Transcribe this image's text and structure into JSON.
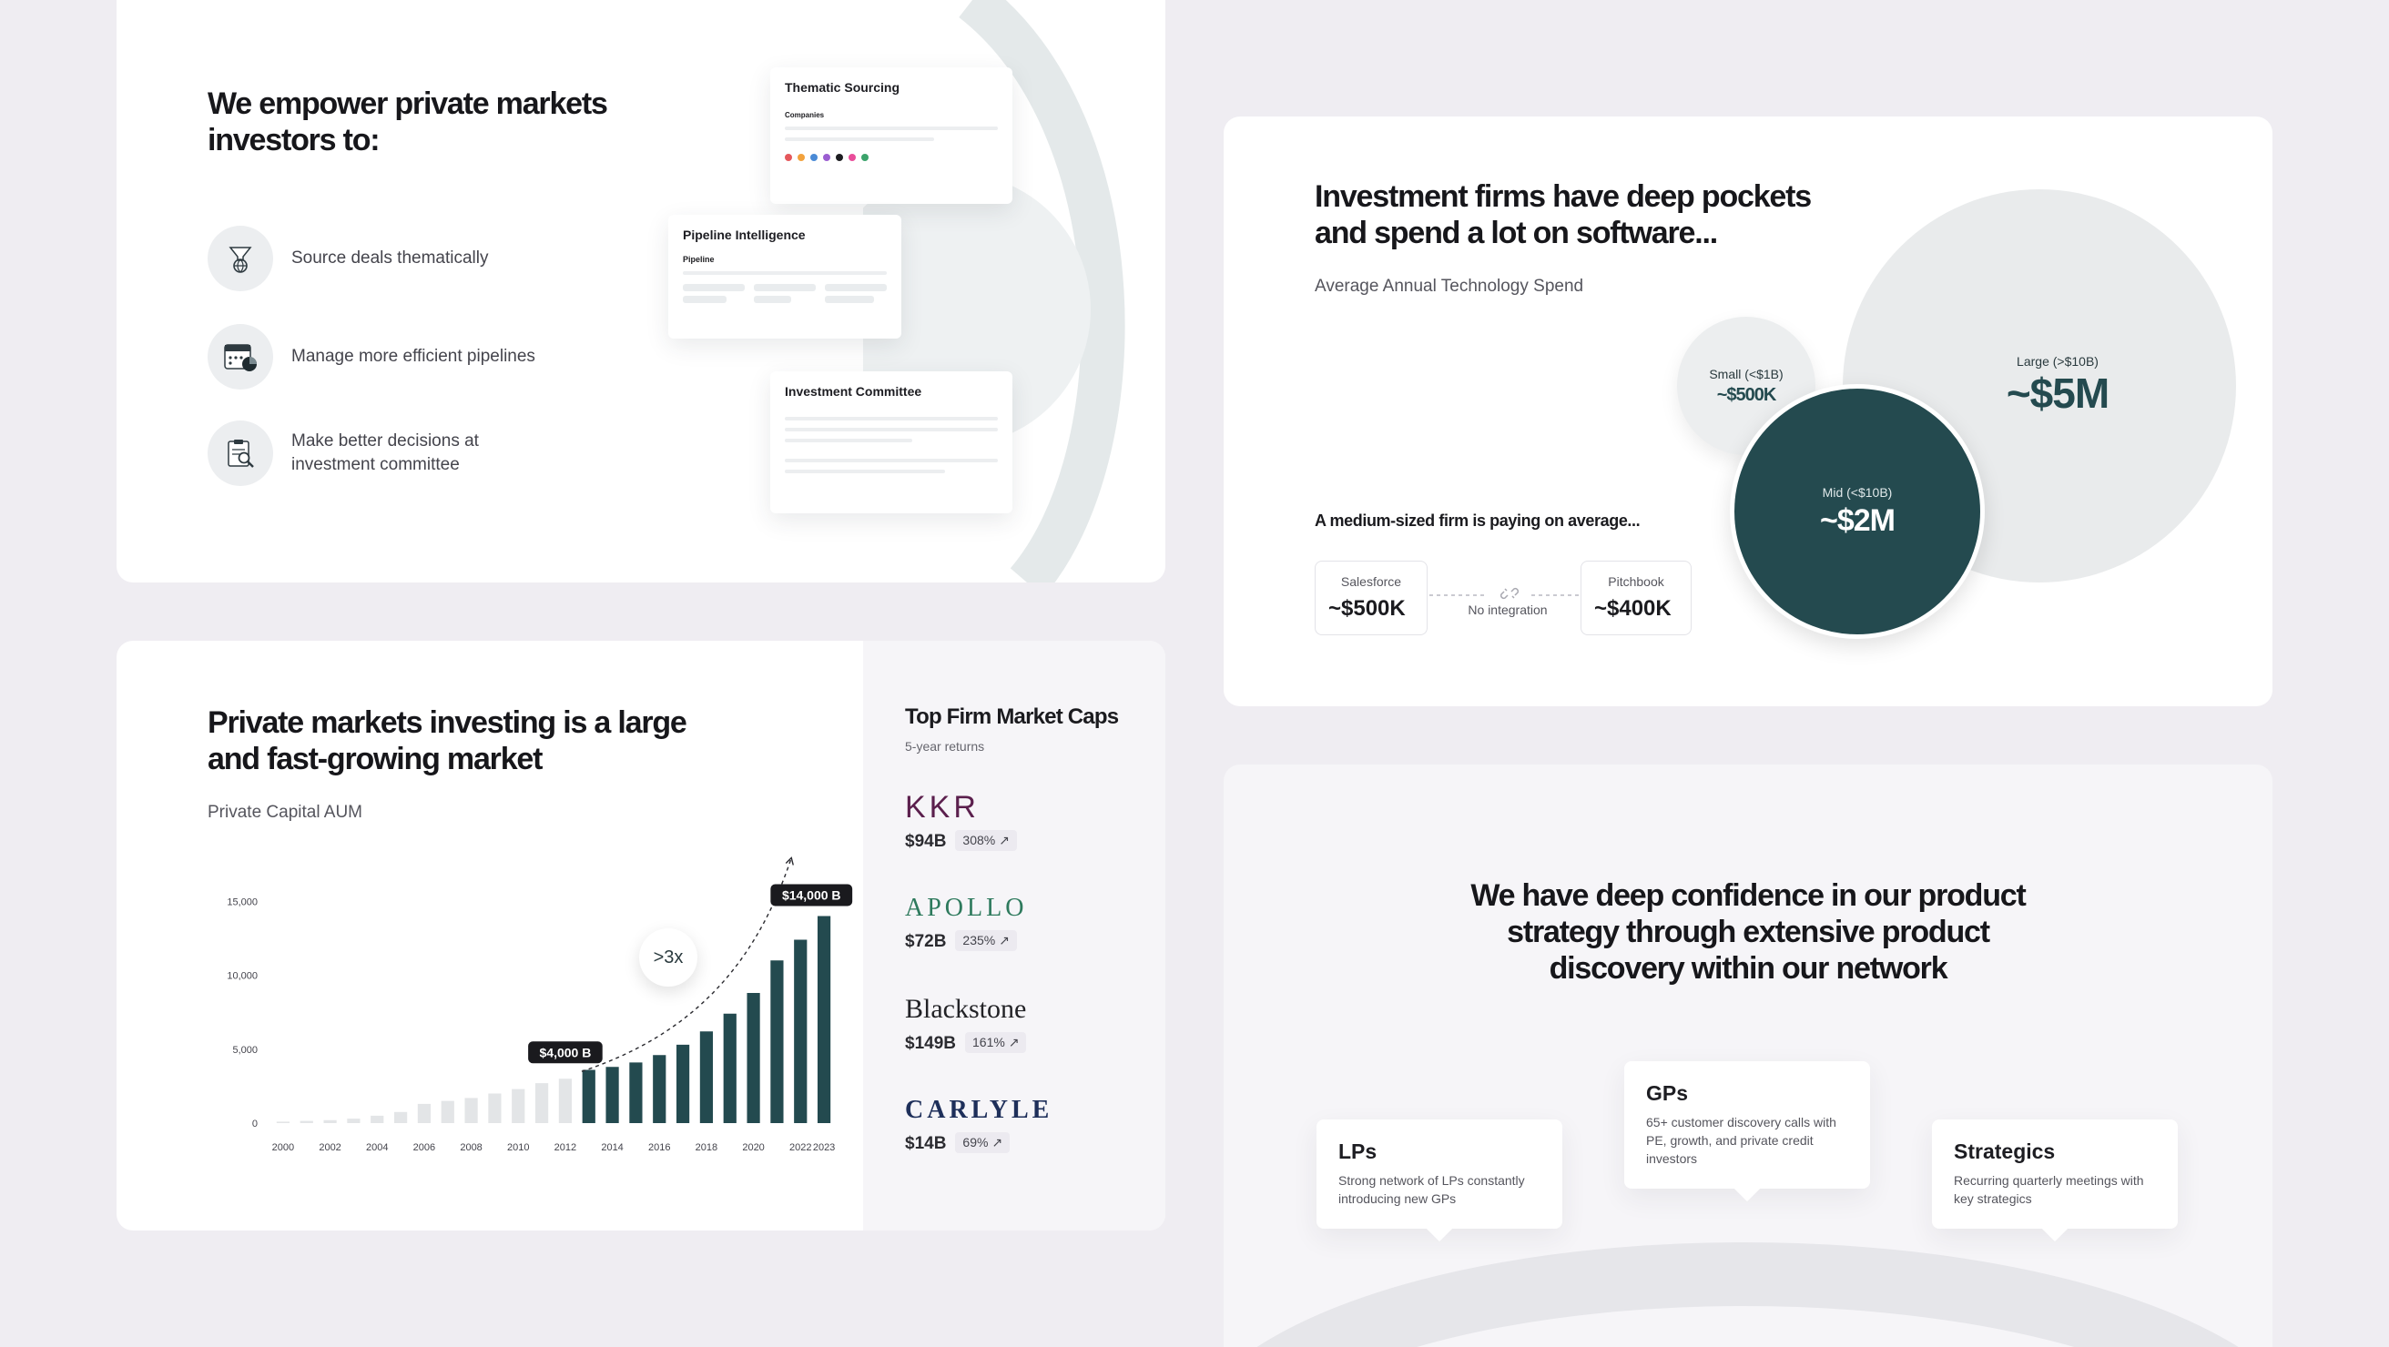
{
  "empower": {
    "title_line1": "We empower private markets",
    "title_line2": "investors to:",
    "features": [
      {
        "icon": "globe-filter-icon",
        "text": "Source deals thematically"
      },
      {
        "icon": "calendar-pie-icon",
        "text": "Manage more efficient pipelines"
      },
      {
        "icon": "clipboard-search-icon",
        "text_line1": "Make better decisions at",
        "text_line2": "investment committee"
      }
    ],
    "screens": {
      "thematic": {
        "title": "Thematic Sourcing",
        "subtitle": "Companies"
      },
      "pipeline": {
        "title": "Pipeline Intelligence",
        "subtitle": "Pipeline"
      },
      "committee": {
        "title": "Investment Committee"
      }
    }
  },
  "spend": {
    "title_line1": "Investment firms have deep pockets",
    "title_line2": "and spend a lot on software...",
    "subtitle": "Average Annual Technology Spend",
    "bubbles": [
      {
        "label": "Small (<$1B)",
        "value": "~$500K",
        "color": "#eceeef"
      },
      {
        "label": "Large (>$10B)",
        "value": "~$5M",
        "color": "#e9ebec"
      },
      {
        "label": "Mid (<$10B)",
        "value": "~$2M",
        "color": "#244a4f"
      }
    ],
    "medium_text": "A medium-sized firm is paying on average...",
    "tools": [
      {
        "label": "Salesforce",
        "value": "~$500K"
      },
      {
        "label": "Pitchbook",
        "value": "~$400K"
      }
    ],
    "connector_label": "No integration"
  },
  "market": {
    "title_line1": "Private markets investing is a large",
    "title_line2": "and fast-growing market",
    "subtitle": "Private Capital AUM",
    "multiplier": ">3x",
    "callout_start": "$4,000 B",
    "callout_end": "$14,000 B"
  },
  "chart_data": {
    "type": "bar",
    "title": "Private Capital AUM",
    "x": [
      2000,
      2001,
      2002,
      2003,
      2004,
      2005,
      2006,
      2007,
      2008,
      2009,
      2010,
      2011,
      2012,
      2013,
      2014,
      2015,
      2016,
      2017,
      2018,
      2019,
      2020,
      2021,
      2022,
      2023
    ],
    "values": [
      100,
      150,
      200,
      300,
      500,
      750,
      1300,
      1500,
      1700,
      2000,
      2300,
      2700,
      3000,
      3600,
      3800,
      4100,
      4600,
      5300,
      6200,
      7400,
      8800,
      11000,
      12400,
      14000
    ],
    "highlight_from": 2013,
    "ylim": [
      0,
      16000
    ],
    "yticks": [
      0,
      5000,
      10000,
      15000
    ],
    "ytick_labels": [
      "0",
      "5,000",
      "10,000",
      "15,000"
    ],
    "xtick_labels": [
      "2000",
      "2002",
      "2004",
      "2006",
      "2008",
      "2010",
      "2012",
      "2014",
      "2016",
      "2018",
      "2020",
      "2022",
      "2023"
    ],
    "colors": {
      "base": "#e3e5e7",
      "highlight": "#234a4f"
    }
  },
  "firms": {
    "title": "Top Firm Market Caps",
    "subtitle": "5-year returns",
    "list": [
      {
        "name": "KKR",
        "cap": "$94B",
        "ret": "308%",
        "color": "#5b1f4d"
      },
      {
        "name": "APOLLO",
        "cap": "$72B",
        "ret": "235%",
        "color": "#2e7a5d"
      },
      {
        "name": "Blackstone",
        "cap": "$149B",
        "ret": "161%",
        "color": "#222226"
      },
      {
        "name": "CARLYLE",
        "cap": "$14B",
        "ret": "69%",
        "color": "#1e2f5a"
      }
    ]
  },
  "confidence": {
    "title_line1": "We have deep confidence in our product",
    "title_line2": "strategy through extensive product",
    "title_line3": "discovery within our network",
    "cards": [
      {
        "title": "LPs",
        "desc_line1": "Strong network of LPs constantly",
        "desc_line2": "introducing new GPs"
      },
      {
        "title": "GPs",
        "desc_line1": "65+ customer discovery calls with",
        "desc_line2": "PE, growth, and private credit",
        "desc_line3": "investors"
      },
      {
        "title": "Strategics",
        "desc_line1": "Recurring quarterly meetings with",
        "desc_line2": "key strategics"
      }
    ]
  }
}
